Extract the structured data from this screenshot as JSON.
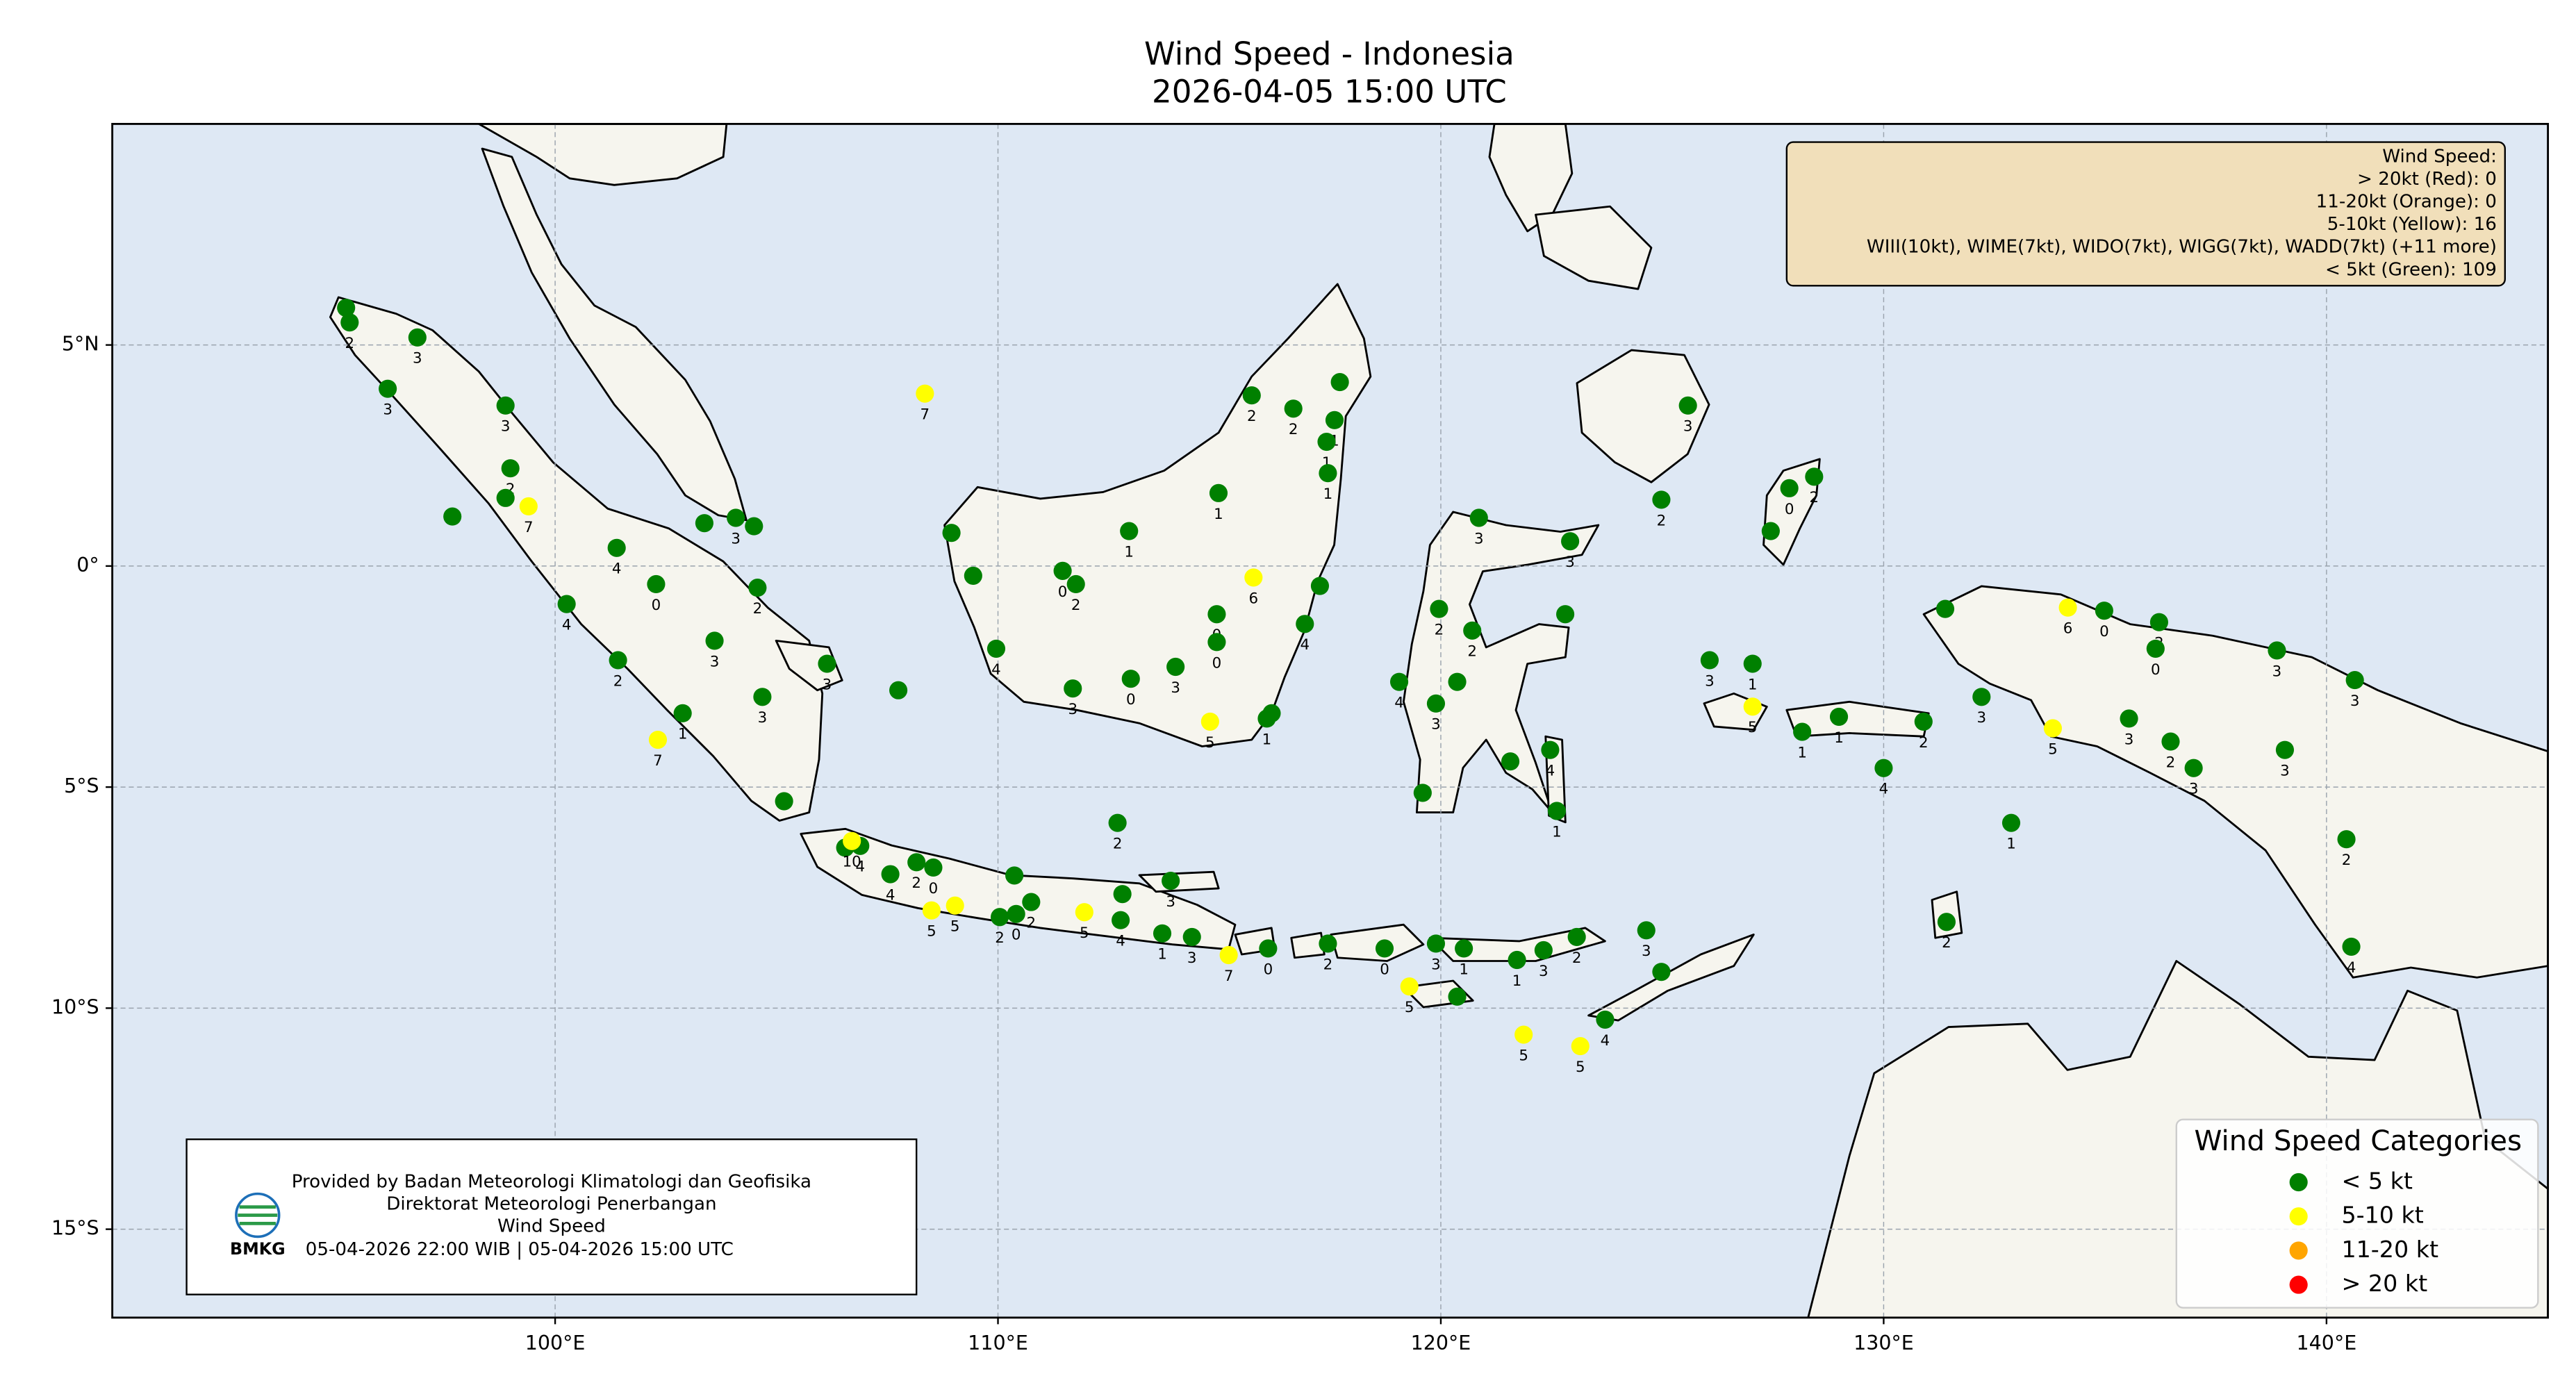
{
  "chart_data": {
    "type": "map-scatter",
    "title": "Wind Speed - Indonesia",
    "subtitle": "2026-04-05 15:00 UTC",
    "xlim": [
      90,
      145
    ],
    "ylim": [
      -17,
      10
    ],
    "xticks": [
      {
        "value": 100,
        "label": "100°E"
      },
      {
        "value": 110,
        "label": "110°E"
      },
      {
        "value": 120,
        "label": "120°E"
      },
      {
        "value": 130,
        "label": "130°E"
      },
      {
        "value": 140,
        "label": "140°E"
      }
    ],
    "yticks": [
      {
        "value": 5,
        "label": "5°N"
      },
      {
        "value": 0,
        "label": "0°"
      },
      {
        "value": -5,
        "label": "5°S"
      },
      {
        "value": -10,
        "label": "10°S"
      },
      {
        "value": -15,
        "label": "15°S"
      }
    ],
    "grid": true,
    "info_box_lines": [
      "Wind Speed:",
      "> 20kt (Red): 0",
      "11-20kt (Orange): 0",
      "5-10kt (Yellow): 16",
      "WIII(10kt), WIME(7kt), WIDO(7kt), WIGG(7kt), WADD(7kt) (+11 more)",
      "< 5kt (Green): 109"
    ],
    "legend_title": "Wind Speed Categories",
    "legend_position": "lower right",
    "credit_lines": [
      "Provided by Badan Meteorologi Klimatologi dan Geofisika",
      "Direktorat Meteorologi Penerbangan",
      "Wind Speed"
    ],
    "credit_logo": "BMKG",
    "credit_time": "05-04-2026 22:00 WIB  |  05-04-2026 15:00 UTC",
    "series": [
      {
        "name": "< 5 kt",
        "color": "#008000",
        "x": [
          95.28,
          95.36,
          96.89,
          96.22,
          98.88,
          98.99,
          98.88,
          97.68,
          101.39,
          102.28,
          103.37,
          104.08,
          104.49,
          104.57,
          100.26,
          101.42,
          103.6,
          104.68,
          102.88,
          106.14,
          107.75,
          105.17,
          106.55,
          106.89,
          107.57,
          108.16,
          108.54,
          110.04,
          110.37,
          110.41,
          110.75,
          112.7,
          112.81,
          112.77,
          113.9,
          113.71,
          114.38,
          116.1,
          117.45,
          118.73,
          119.89,
          120.52,
          120.37,
          121.72,
          122.32,
          123.07,
          124.64,
          124.98,
          123.71,
          108.95,
          109.44,
          109.96,
          111.46,
          111.76,
          111.69,
          113.0,
          112.96,
          114.01,
          114.94,
          114.94,
          116.07,
          116.18,
          114.98,
          115.73,
          116.67,
          117.72,
          117.6,
          117.42,
          117.45,
          117.27,
          116.93,
          120.86,
          122.92,
          124.98,
          125.58,
          119.96,
          120.71,
          122.81,
          119.06,
          119.89,
          120.37,
          121.57,
          122.47,
          122.62,
          119.59,
          126.07,
          127.04,
          128.16,
          128.99,
          130.9,
          130.0,
          127.87,
          128.43,
          127.45,
          131.39,
          132.21,
          134.98,
          136.22,
          136.14,
          135.54,
          136.48,
          137.0,
          138.88,
          140.64,
          139.06,
          140.45,
          140.56,
          132.88,
          131.42
        ],
        "y": [
          5.84,
          5.51,
          5.17,
          4.01,
          3.63,
          2.21,
          1.54,
          1.12,
          0.41,
          -0.41,
          0.97,
          1.09,
          0.9,
          -0.49,
          -0.86,
          -2.13,
          -1.69,
          -2.96,
          -3.33,
          -2.21,
          -2.81,
          -5.32,
          -6.37,
          -6.33,
          -6.97,
          -6.7,
          -6.82,
          -7.94,
          -7.0,
          -7.87,
          -7.6,
          -5.81,
          -7.42,
          -8.01,
          -7.12,
          -8.31,
          -8.39,
          -8.65,
          -8.54,
          -8.65,
          -8.54,
          -8.65,
          -9.74,
          -8.91,
          -8.69,
          -8.39,
          -8.24,
          -9.18,
          -10.26,
          0.75,
          -0.22,
          -1.87,
          -0.11,
          -0.41,
          -2.77,
          -2.55,
          0.79,
          -2.28,
          -1.09,
          -1.72,
          -3.45,
          -3.33,
          1.65,
          3.86,
          3.56,
          4.16,
          3.3,
          2.81,
          2.1,
          -0.45,
          -1.31,
          1.09,
          0.56,
          1.5,
          3.63,
          -0.97,
          -1.46,
          -1.09,
          -2.62,
          -3.11,
          -2.62,
          -4.42,
          -4.16,
          -5.54,
          -5.13,
          -2.13,
          -2.21,
          -3.75,
          -3.41,
          -3.52,
          -4.57,
          1.76,
          2.02,
          0.79,
          -0.97,
          -2.96,
          -1.01,
          -1.27,
          -1.87,
          -3.45,
          -3.97,
          -4.57,
          -1.91,
          -2.58,
          -4.16,
          -6.18,
          -8.61,
          -5.81,
          -8.05
        ],
        "values": [
          null,
          2,
          3,
          3,
          3,
          2,
          null,
          null,
          4,
          0,
          null,
          3,
          null,
          2,
          4,
          2,
          3,
          3,
          1,
          3,
          null,
          null,
          null,
          4,
          4,
          2,
          0,
          2,
          null,
          0,
          2,
          2,
          null,
          4,
          3,
          1,
          3,
          0,
          2,
          0,
          3,
          1,
          null,
          1,
          3,
          2,
          3,
          null,
          4,
          null,
          null,
          4,
          0,
          2,
          3,
          0,
          1,
          3,
          0,
          0,
          1,
          null,
          1,
          2,
          2,
          null,
          1,
          1,
          1,
          null,
          4,
          3,
          3,
          2,
          3,
          2,
          2,
          null,
          4,
          3,
          null,
          null,
          4,
          1,
          null,
          3,
          1,
          1,
          1,
          2,
          4,
          0,
          2,
          null,
          null,
          3,
          0,
          2,
          0,
          3,
          2,
          3,
          3,
          3,
          3,
          2,
          4,
          1,
          2
        ]
      },
      {
        "name": "5-10 kt",
        "color": "#ffff00",
        "x": [
          99.4,
          102.32,
          106.7,
          108.5,
          109.03,
          111.95,
          115.21,
          119.29,
          121.87,
          123.15,
          108.35,
          114.79,
          115.77,
          127.04,
          133.82,
          134.16
        ],
        "y": [
          1.35,
          -3.93,
          -6.22,
          -7.79,
          -7.68,
          -7.83,
          -8.8,
          -9.51,
          -10.6,
          -10.86,
          3.9,
          -3.52,
          -0.26,
          -3.18,
          -3.67,
          -0.94
        ],
        "values": [
          7,
          7,
          10,
          5,
          5,
          5,
          7,
          5,
          5,
          5,
          7,
          5,
          6,
          5,
          5,
          6
        ]
      },
      {
        "name": "11-20 kt",
        "color": "#ffa500",
        "x": [],
        "y": [],
        "values": []
      },
      {
        "name": "> 20 kt",
        "color": "#ff0000",
        "x": [],
        "y": [],
        "values": []
      }
    ]
  }
}
